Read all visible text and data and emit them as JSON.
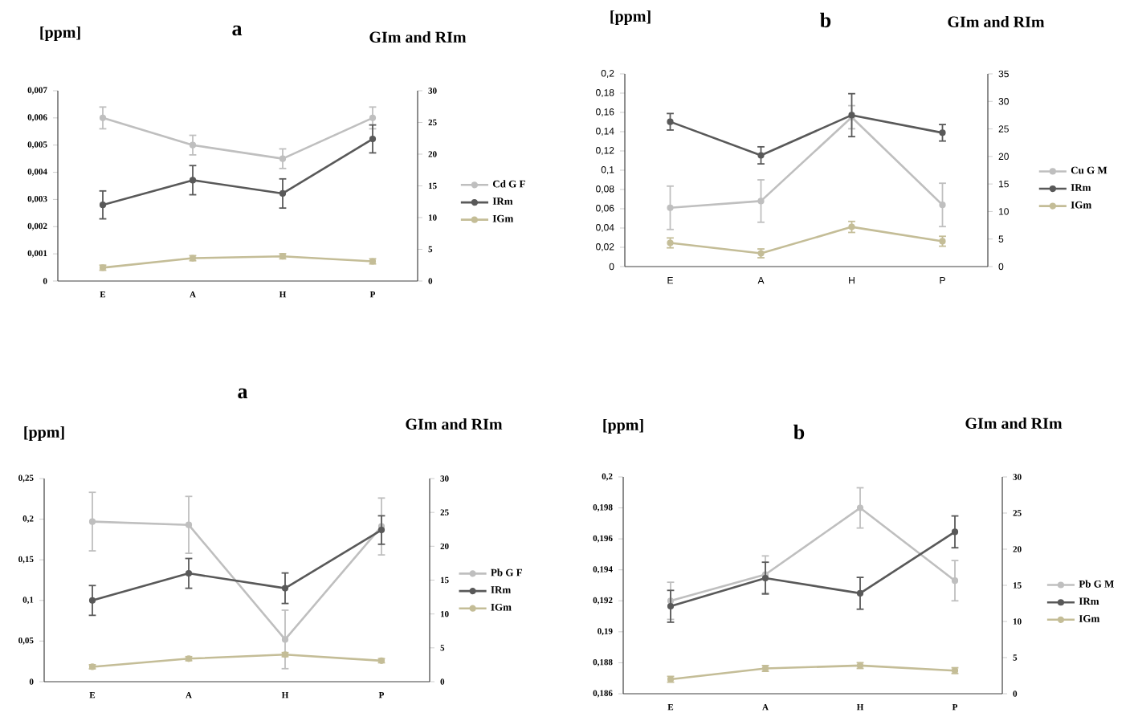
{
  "chart_data": [
    {
      "type": "line",
      "title": "a",
      "ylabel": "[ppm]",
      "y2label": "GIm and RIm",
      "categories": [
        "E",
        "A",
        "H",
        "P"
      ],
      "legend": "right",
      "marker": "circle",
      "ylim": [
        0,
        0.007
      ],
      "yticks": [
        0,
        {
          "value": 0.001,
          "label": "0,001"
        },
        {
          "value": 0.002,
          "label": "0,002"
        },
        {
          "value": 0.003,
          "label": "0,003"
        },
        {
          "value": 0.004,
          "label": "0,004"
        },
        {
          "value": 0.005,
          "label": "0,005"
        },
        {
          "value": 0.006,
          "label": "0,006"
        },
        {
          "value": 0.007,
          "label": "0,007"
        }
      ],
      "y2lim": [
        0,
        30
      ],
      "y2ticks": [
        0,
        5,
        10,
        15,
        20,
        25,
        30
      ],
      "series": [
        {
          "name": "Cd G F",
          "color": "#bfbfbf",
          "values": [
            0.006,
            0.005,
            0.0045,
            0.006
          ],
          "errors": [
            0.0004,
            0.00036,
            0.00036,
            0.0004
          ]
        },
        {
          "name": "IRm",
          "color": "#595959",
          "axis": "y2",
          "values": [
            12.0,
            15.9,
            13.8,
            22.4
          ],
          "errors": [
            2.2,
            2.3,
            2.3,
            2.2
          ]
        },
        {
          "name": "IGm",
          "color": "#c4bd97",
          "axis": "y2",
          "values": [
            2.1,
            3.6,
            3.9,
            3.1
          ],
          "errors": [
            0.4,
            0.4,
            0.4,
            0.4
          ]
        }
      ]
    },
    {
      "type": "line",
      "title": "b",
      "ylabel": "[ppm]",
      "y2label": "GIm and RIm",
      "categories": [
        "E",
        "A",
        "H",
        "P"
      ],
      "legend": "right",
      "marker": "circle",
      "ylim": [
        0,
        0.2
      ],
      "yticks": [
        0,
        {
          "value": 0.02,
          "label": "0,02"
        },
        {
          "value": 0.04,
          "label": "0,04"
        },
        {
          "value": 0.06,
          "label": "0,06"
        },
        {
          "value": 0.08,
          "label": "0,08"
        },
        {
          "value": 0.1,
          "label": "0,1"
        },
        {
          "value": 0.12,
          "label": "0,12"
        },
        {
          "value": 0.14,
          "label": "0,14"
        },
        {
          "value": 0.16,
          "label": "0,16"
        },
        {
          "value": 0.18,
          "label": "0,18"
        },
        {
          "value": 0.2,
          "label": "0,2"
        }
      ],
      "y2lim": [
        0,
        35
      ],
      "y2ticks": [
        0,
        5,
        10,
        15,
        20,
        25,
        30,
        35
      ],
      "series": [
        {
          "name": "Cu G M",
          "color": "#bfbfbf",
          "values": [
            0.061,
            0.068,
            0.155,
            0.064
          ],
          "errors": [
            0.0225,
            0.022,
            0.012,
            0.0225
          ]
        },
        {
          "name": "IRm",
          "color": "#595959",
          "axis": "y2",
          "values": [
            26.3,
            20.2,
            27.5,
            24.3
          ],
          "errors": [
            1.5,
            1.55,
            3.9,
            1.5
          ]
        },
        {
          "name": "IGm",
          "color": "#c4bd97",
          "axis": "y2",
          "values": [
            4.3,
            2.4,
            7.2,
            4.6
          ],
          "errors": [
            0.9,
            0.8,
            1.0,
            0.9
          ]
        }
      ]
    },
    {
      "type": "line",
      "title": "a",
      "ylabel": "[ppm]",
      "y2label": "GIm and RIm",
      "categories": [
        "E",
        "A",
        "H",
        "P"
      ],
      "legend": "right",
      "marker": "circle",
      "ylim": [
        0,
        0.25
      ],
      "yticks": [
        0,
        {
          "value": 0.05,
          "label": "0,05"
        },
        {
          "value": 0.1,
          "label": "0,1"
        },
        {
          "value": 0.15,
          "label": "0,15"
        },
        {
          "value": 0.2,
          "label": "0,2"
        },
        {
          "value": 0.25,
          "label": "0,25"
        }
      ],
      "y2lim": [
        0,
        30
      ],
      "y2ticks": [
        0,
        5,
        10,
        15,
        20,
        25,
        30
      ],
      "series": [
        {
          "name": "Pb G F",
          "color": "#bfbfbf",
          "values": [
            0.197,
            0.193,
            0.052,
            0.191
          ],
          "errors": [
            0.036,
            0.035,
            0.036,
            0.035
          ]
        },
        {
          "name": "IRm",
          "color": "#595959",
          "axis": "y2",
          "values": [
            12.0,
            16.0,
            13.8,
            22.4
          ],
          "errors": [
            2.2,
            2.2,
            2.25,
            2.1
          ]
        },
        {
          "name": "IGm",
          "color": "#c4bd97",
          "axis": "y2",
          "values": [
            2.2,
            3.4,
            4.0,
            3.1
          ],
          "errors": [
            0.3,
            0.3,
            0.3,
            0.3
          ]
        }
      ]
    },
    {
      "type": "line",
      "title": "b",
      "ylabel": "[ppm]",
      "y2label": "GIm and RIm",
      "categories": [
        "E",
        "A",
        "H",
        "P"
      ],
      "legend": "right",
      "marker": "circle",
      "ylim": [
        0.186,
        0.2
      ],
      "yticks": [
        {
          "value": 0.186,
          "label": "0,186"
        },
        {
          "value": 0.188,
          "label": "0,188"
        },
        {
          "value": 0.19,
          "label": "0,19"
        },
        {
          "value": 0.192,
          "label": "0,192"
        },
        {
          "value": 0.194,
          "label": "0,194"
        },
        {
          "value": 0.196,
          "label": "0,196"
        },
        {
          "value": 0.198,
          "label": "0,198"
        },
        {
          "value": 0.2,
          "label": "0,2"
        }
      ],
      "y2lim": [
        0,
        30
      ],
      "y2ticks": [
        0,
        5,
        10,
        15,
        20,
        25,
        30
      ],
      "series": [
        {
          "name": "Pb G M",
          "color": "#bfbfbf",
          "values": [
            0.192,
            0.1937,
            0.198,
            0.1933
          ],
          "errors": [
            0.0012,
            0.0012,
            0.0013,
            0.0013
          ]
        },
        {
          "name": "IRm",
          "color": "#595959",
          "axis": "y2",
          "values": [
            12.1,
            16.0,
            13.9,
            22.4
          ],
          "errors": [
            2.2,
            2.2,
            2.2,
            2.2
          ]
        },
        {
          "name": "IGm",
          "color": "#c4bd97",
          "axis": "y2",
          "values": [
            2.0,
            3.5,
            3.9,
            3.2
          ],
          "errors": [
            0.4,
            0.4,
            0.4,
            0.4
          ]
        }
      ]
    }
  ]
}
